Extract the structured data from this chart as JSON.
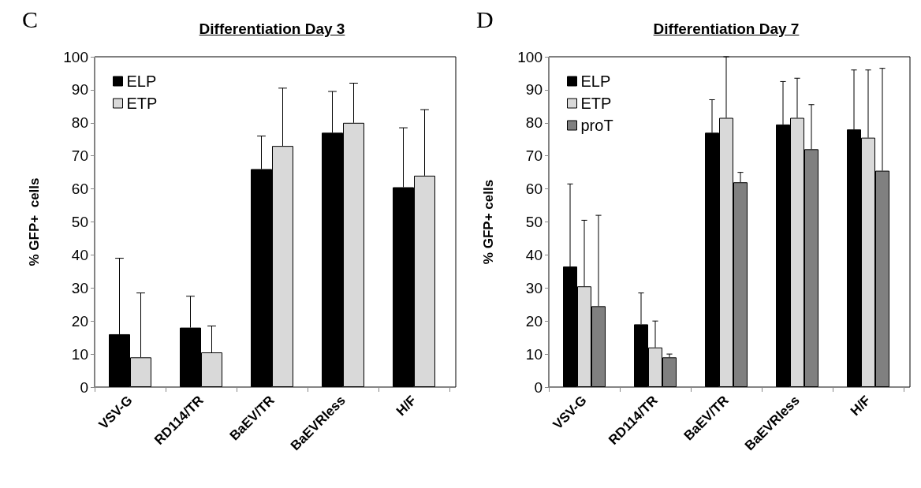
{
  "chart_data": [
    {
      "type": "bar",
      "title": "Differentiation Day 3",
      "ylabel": "% GFP+  cells",
      "annotations": [
        "C"
      ],
      "categories": [
        "VSV-G",
        "RD114/TR",
        "BaEV/TR",
        "BaEVRless",
        "H/F"
      ],
      "series": [
        {
          "name": "ELP",
          "color": "#000000",
          "values": [
            16,
            18,
            66,
            77,
            60.5
          ],
          "errors": [
            [
              16,
              39
            ],
            [
              18,
              27.5
            ],
            [
              66,
              76
            ],
            [
              77,
              89.5
            ],
            [
              60.5,
              78.5
            ]
          ]
        },
        {
          "name": "ETP",
          "color": "#d9d9d9",
          "values": [
            9,
            10.5,
            73,
            80,
            64
          ],
          "errors": [
            [
              9,
              28.5
            ],
            [
              10.5,
              18.5
            ],
            [
              73,
              90.5
            ],
            [
              80,
              92
            ],
            [
              64,
              84
            ]
          ]
        }
      ],
      "ylim": [
        0,
        100
      ],
      "yticks": [
        0,
        10,
        20,
        30,
        40,
        50,
        60,
        70,
        80,
        90,
        100
      ],
      "grid": false,
      "legend": "top left"
    },
    {
      "type": "bar",
      "title": "Differentiation Day 7",
      "ylabel": "% GFP+ cells",
      "annotations": [
        "D"
      ],
      "categories": [
        "VSV-G",
        "RD114/TR",
        "BaEV/TR",
        "BaEVRless",
        "H/F"
      ],
      "series": [
        {
          "name": "ELP",
          "color": "#000000",
          "values": [
            36.5,
            19,
            77,
            79.5,
            78
          ],
          "errors": [
            [
              36.5,
              61.5
            ],
            [
              19,
              28.5
            ],
            [
              77,
              87
            ],
            [
              79.5,
              92.5
            ],
            [
              78,
              96
            ]
          ]
        },
        {
          "name": "ETP",
          "color": "#d9d9d9",
          "values": [
            30.5,
            12,
            81.5,
            81.5,
            75.5
          ],
          "errors": [
            [
              30.5,
              50.5
            ],
            [
              12,
              20
            ],
            [
              81.5,
              100
            ],
            [
              81.5,
              93.5
            ],
            [
              75.5,
              96
            ]
          ]
        },
        {
          "name": "proT",
          "color": "#808080",
          "values": [
            24.5,
            9,
            62,
            72,
            65.5
          ],
          "errors": [
            [
              24.5,
              52
            ],
            [
              9,
              10
            ],
            [
              62,
              65
            ],
            [
              72,
              85.5
            ],
            [
              65.5,
              96.5
            ]
          ]
        }
      ],
      "ylim": [
        0,
        100
      ],
      "yticks": [
        0,
        10,
        20,
        30,
        40,
        50,
        60,
        70,
        80,
        90,
        100
      ],
      "grid": false,
      "legend": "top left"
    }
  ]
}
